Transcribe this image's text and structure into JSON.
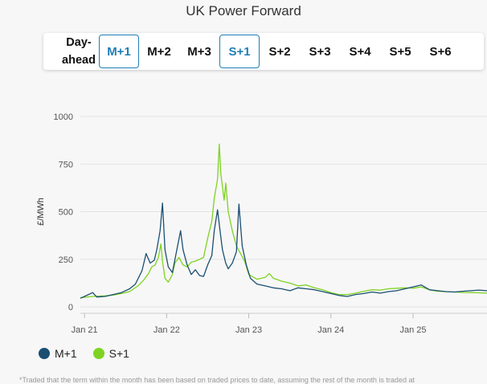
{
  "page": {
    "title": "UK Power Forward",
    "footnote": "*Traded that the term within the month has been based on traded prices to date, assuming the rest of the month is traded at"
  },
  "tabs": [
    {
      "id": "day-ahead",
      "lines": [
        "Day-",
        "ahead"
      ],
      "active": false
    },
    {
      "id": "m1",
      "label": "M+1",
      "active": true
    },
    {
      "id": "m2",
      "label": "M+2",
      "active": false
    },
    {
      "id": "m3",
      "label": "M+3",
      "active": false
    },
    {
      "id": "s1",
      "label": "S+1",
      "active": true
    },
    {
      "id": "s2",
      "label": "S+2",
      "active": false
    },
    {
      "id": "s3",
      "label": "S+3",
      "active": false
    },
    {
      "id": "s4",
      "label": "S+4",
      "active": false
    },
    {
      "id": "s5",
      "label": "S+5",
      "active": false
    },
    {
      "id": "s6",
      "label": "S+6",
      "active": false
    }
  ],
  "colors": {
    "m1": "#1b4f72",
    "s1": "#7ed321",
    "accent": "#1f7db5"
  },
  "chart_data": {
    "type": "line",
    "ylabel": "£/MWh",
    "xlabel": "",
    "ylim": [
      0,
      1000
    ],
    "yticks": [
      0,
      250,
      500,
      750,
      1000
    ],
    "xticks": [
      {
        "x": 2021.0,
        "label": "Jan 21"
      },
      {
        "x": 2022.0,
        "label": "Jan 22"
      },
      {
        "x": 2023.0,
        "label": "Jan 23"
      },
      {
        "x": 2024.0,
        "label": "Jan 24"
      },
      {
        "x": 2025.0,
        "label": "Jan 25"
      }
    ],
    "xlim": [
      2020.95,
      2025.9
    ],
    "grid": true,
    "legend": "bottom-left",
    "series": [
      {
        "name": "M+1",
        "color": "#1b4f72",
        "points": [
          [
            2020.95,
            45
          ],
          [
            2021.05,
            65
          ],
          [
            2021.1,
            75
          ],
          [
            2021.15,
            52
          ],
          [
            2021.25,
            55
          ],
          [
            2021.35,
            65
          ],
          [
            2021.45,
            75
          ],
          [
            2021.55,
            95
          ],
          [
            2021.62,
            120
          ],
          [
            2021.7,
            190
          ],
          [
            2021.75,
            280
          ],
          [
            2021.8,
            230
          ],
          [
            2021.85,
            245
          ],
          [
            2021.88,
            300
          ],
          [
            2021.92,
            400
          ],
          [
            2021.95,
            545
          ],
          [
            2021.98,
            300
          ],
          [
            2022.02,
            210
          ],
          [
            2022.07,
            180
          ],
          [
            2022.12,
            290
          ],
          [
            2022.17,
            400
          ],
          [
            2022.2,
            300
          ],
          [
            2022.25,
            220
          ],
          [
            2022.3,
            170
          ],
          [
            2022.35,
            195
          ],
          [
            2022.4,
            165
          ],
          [
            2022.45,
            160
          ],
          [
            2022.5,
            220
          ],
          [
            2022.55,
            270
          ],
          [
            2022.58,
            400
          ],
          [
            2022.62,
            510
          ],
          [
            2022.65,
            400
          ],
          [
            2022.68,
            300
          ],
          [
            2022.72,
            230
          ],
          [
            2022.75,
            200
          ],
          [
            2022.8,
            230
          ],
          [
            2022.85,
            290
          ],
          [
            2022.88,
            540
          ],
          [
            2022.92,
            320
          ],
          [
            2022.97,
            220
          ],
          [
            2023.02,
            150
          ],
          [
            2023.1,
            120
          ],
          [
            2023.2,
            110
          ],
          [
            2023.3,
            100
          ],
          [
            2023.4,
            95
          ],
          [
            2023.5,
            85
          ],
          [
            2023.6,
            100
          ],
          [
            2023.7,
            95
          ],
          [
            2023.8,
            90
          ],
          [
            2023.9,
            80
          ],
          [
            2024.0,
            70
          ],
          [
            2024.1,
            60
          ],
          [
            2024.2,
            55
          ],
          [
            2024.3,
            65
          ],
          [
            2024.4,
            70
          ],
          [
            2024.5,
            78
          ],
          [
            2024.6,
            72
          ],
          [
            2024.7,
            80
          ],
          [
            2024.8,
            85
          ],
          [
            2024.9,
            95
          ],
          [
            2025.0,
            105
          ],
          [
            2025.1,
            115
          ],
          [
            2025.2,
            90
          ],
          [
            2025.3,
            85
          ],
          [
            2025.4,
            80
          ],
          [
            2025.5,
            78
          ],
          [
            2025.6,
            82
          ],
          [
            2025.7,
            85
          ],
          [
            2025.8,
            88
          ],
          [
            2025.9,
            85
          ]
        ]
      },
      {
        "name": "S+1",
        "color": "#7ed321",
        "points": [
          [
            2020.95,
            48
          ],
          [
            2021.1,
            55
          ],
          [
            2021.25,
            58
          ],
          [
            2021.35,
            62
          ],
          [
            2021.45,
            70
          ],
          [
            2021.55,
            80
          ],
          [
            2021.65,
            110
          ],
          [
            2021.72,
            140
          ],
          [
            2021.78,
            175
          ],
          [
            2021.82,
            210
          ],
          [
            2021.86,
            220
          ],
          [
            2021.9,
            260
          ],
          [
            2021.93,
            330
          ],
          [
            2021.95,
            240
          ],
          [
            2021.98,
            150
          ],
          [
            2022.02,
            130
          ],
          [
            2022.07,
            170
          ],
          [
            2022.1,
            230
          ],
          [
            2022.15,
            260
          ],
          [
            2022.2,
            220
          ],
          [
            2022.25,
            210
          ],
          [
            2022.3,
            235
          ],
          [
            2022.35,
            240
          ],
          [
            2022.4,
            250
          ],
          [
            2022.45,
            260
          ],
          [
            2022.5,
            360
          ],
          [
            2022.55,
            450
          ],
          [
            2022.58,
            570
          ],
          [
            2022.62,
            670
          ],
          [
            2022.64,
            855
          ],
          [
            2022.66,
            700
          ],
          [
            2022.7,
            560
          ],
          [
            2022.72,
            650
          ],
          [
            2022.75,
            500
          ],
          [
            2022.8,
            400
          ],
          [
            2022.85,
            320
          ],
          [
            2022.9,
            280
          ],
          [
            2022.95,
            240
          ],
          [
            2023.0,
            170
          ],
          [
            2023.1,
            145
          ],
          [
            2023.2,
            155
          ],
          [
            2023.25,
            175
          ],
          [
            2023.3,
            150
          ],
          [
            2023.4,
            135
          ],
          [
            2023.5,
            125
          ],
          [
            2023.6,
            110
          ],
          [
            2023.7,
            115
          ],
          [
            2023.8,
            100
          ],
          [
            2023.9,
            90
          ],
          [
            2024.0,
            75
          ],
          [
            2024.1,
            65
          ],
          [
            2024.2,
            65
          ],
          [
            2024.3,
            72
          ],
          [
            2024.4,
            82
          ],
          [
            2024.5,
            90
          ],
          [
            2024.6,
            88
          ],
          [
            2024.7,
            95
          ],
          [
            2024.8,
            98
          ],
          [
            2024.9,
            100
          ],
          [
            2025.0,
            98
          ],
          [
            2025.1,
            105
          ],
          [
            2025.2,
            90
          ],
          [
            2025.3,
            82
          ],
          [
            2025.4,
            80
          ],
          [
            2025.5,
            78
          ],
          [
            2025.6,
            76
          ],
          [
            2025.7,
            75
          ],
          [
            2025.8,
            74
          ],
          [
            2025.9,
            72
          ]
        ]
      }
    ]
  }
}
